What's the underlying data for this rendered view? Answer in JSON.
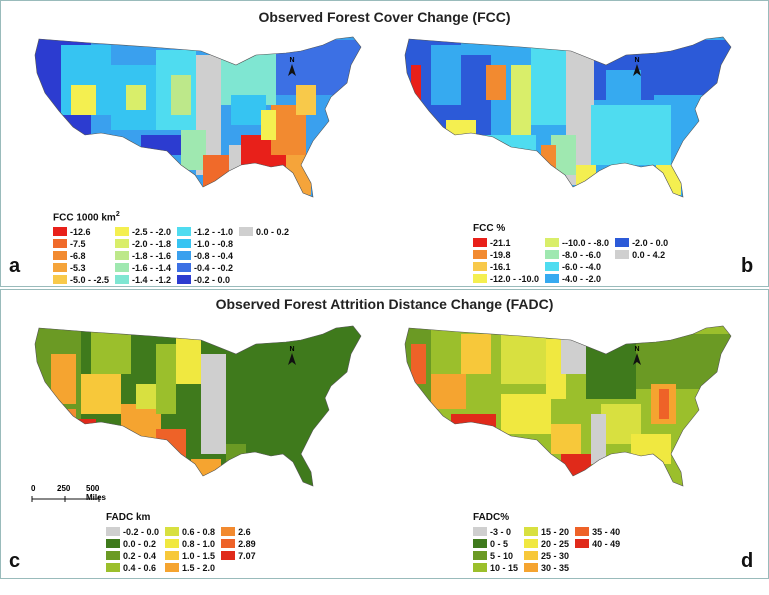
{
  "top_title": "Observed Forest Cover Change (FCC)",
  "bottom_title": "Observed Forest Attrition Distance Change (FADC)",
  "north": "N",
  "scale": {
    "t0": "0",
    "t1": "250",
    "t2": "500 Miles"
  },
  "panels": {
    "a": {
      "label": "a",
      "legend_title": "FCC 1000 km",
      "legend_sup": "2",
      "rows": 5,
      "items": [
        {
          "label": "-12.6",
          "color": "#e8201a"
        },
        {
          "label": "-7.5",
          "color": "#f06a2a"
        },
        {
          "label": "-6.8",
          "color": "#f28a30"
        },
        {
          "label": "-5.3",
          "color": "#f5a43a"
        },
        {
          "label": "-5.0 - -2.5",
          "color": "#f8c94a"
        },
        {
          "label": "-2.5 - -2.0",
          "color": "#f4ef50"
        },
        {
          "label": "-2.0 - -1.8",
          "color": "#d9ee6a"
        },
        {
          "label": "-1.8 - -1.6",
          "color": "#bde88a"
        },
        {
          "label": "-1.6 - -1.4",
          "color": "#9fe8b0"
        },
        {
          "label": "-1.4 - -1.2",
          "color": "#7fe6d2"
        },
        {
          "label": "-1.2 - -1.0",
          "color": "#4fdcf0"
        },
        {
          "label": "-1.0 - -0.8",
          "color": "#36c4f2"
        },
        {
          "label": "-0.8 - -0.4",
          "color": "#3aa0ee"
        },
        {
          "label": "-0.4 - -0.2",
          "color": "#3c70e4"
        },
        {
          "label": "-0.2 - 0.0",
          "color": "#2c3cd0"
        },
        {
          "label": "0.0 - 0.2",
          "color": "#cfcfcf"
        }
      ]
    },
    "b": {
      "label": "b",
      "legend_title": "FCC %",
      "rows": 4,
      "items": [
        {
          "label": "-21.1",
          "color": "#e8201a"
        },
        {
          "label": "-19.8",
          "color": "#f28a30"
        },
        {
          "label": "-16.1",
          "color": "#f8c94a"
        },
        {
          "label": "-12.0 - -10.0",
          "color": "#f4ef50"
        },
        {
          "label": "--10.0 - -8.0",
          "color": "#d9ee6a"
        },
        {
          "label": "-8.0 - -6.0",
          "color": "#9fe8b0"
        },
        {
          "label": "-6.0 - -4.0",
          "color": "#4fdcf0"
        },
        {
          "label": "-4.0 - -2.0",
          "color": "#36aaf0"
        },
        {
          "label": "-2.0 - 0.0",
          "color": "#2c5ad8"
        },
        {
          "label": "0.0 - 4.2",
          "color": "#cfcfcf"
        }
      ]
    },
    "c": {
      "label": "c",
      "legend_title": "FADC km",
      "rows": 4,
      "items": [
        {
          "label": "-0.2 - 0.0",
          "color": "#cfcfcf"
        },
        {
          "label": "0.0 - 0.2",
          "color": "#3f7a1c"
        },
        {
          "label": "0.2 - 0.4",
          "color": "#6b9a24"
        },
        {
          "label": "0.4 - 0.6",
          "color": "#9bbf2c"
        },
        {
          "label": "0.6 - 0.8",
          "color": "#d8e040"
        },
        {
          "label": "0.8 - 1.0",
          "color": "#f0e840"
        },
        {
          "label": "1.0 - 1.5",
          "color": "#f7c83a"
        },
        {
          "label": "1.5 - 2.0",
          "color": "#f5a430"
        },
        {
          "label": "2.6",
          "color": "#f28a30"
        },
        {
          "label": "2.89",
          "color": "#ee6228"
        },
        {
          "label": "7.07",
          "color": "#e02a1a"
        }
      ]
    },
    "d": {
      "label": "d",
      "legend_title": "FADC%",
      "rows": 4,
      "items": [
        {
          "label": "-3 - 0",
          "color": "#cfcfcf"
        },
        {
          "label": "0 - 5",
          "color": "#3f7a1c"
        },
        {
          "label": "5 - 10",
          "color": "#6b9a24"
        },
        {
          "label": "10 - 15",
          "color": "#9bbf2c"
        },
        {
          "label": "15 - 20",
          "color": "#d8e040"
        },
        {
          "label": "20 - 25",
          "color": "#f0e840"
        },
        {
          "label": "25 - 30",
          "color": "#f7c83a"
        },
        {
          "label": "30 - 35",
          "color": "#f5a430"
        },
        {
          "label": "35 - 40",
          "color": "#ee6228"
        },
        {
          "label": "40 - 49",
          "color": "#e02a1a"
        }
      ]
    }
  }
}
